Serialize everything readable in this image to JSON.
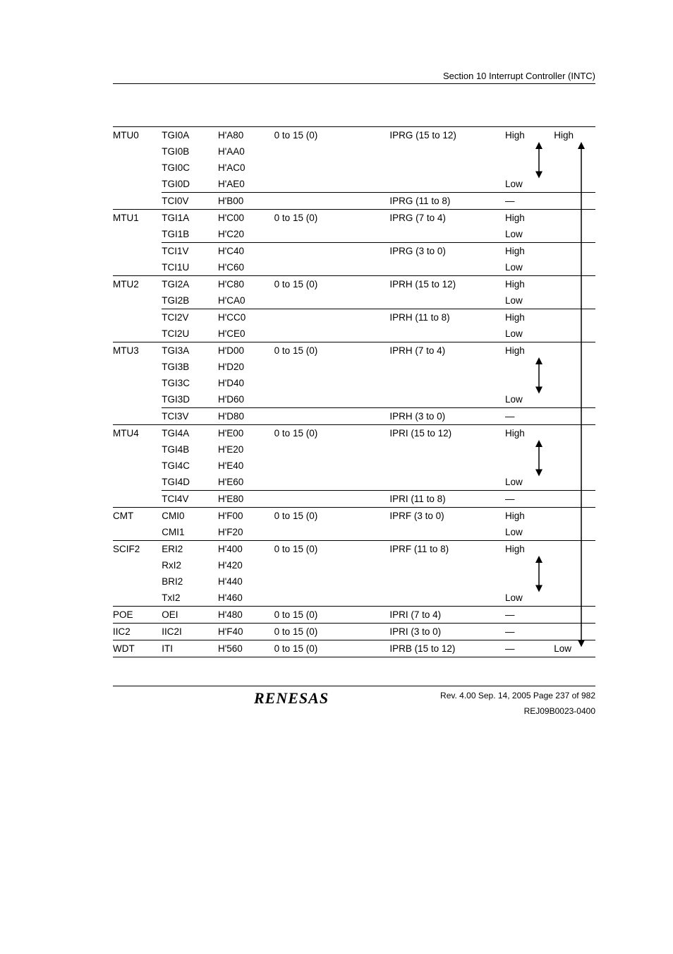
{
  "header": {
    "section": "Section 10   Interrupt Controller (INTC)"
  },
  "rows": [
    {
      "top": true,
      "src": "MTU0",
      "name": "TGI0A",
      "vec": "H'A80",
      "pri": "0 to 15 (0)",
      "ipr": "IPRG (15 to 12)",
      "in": "High",
      "def": "High"
    },
    {
      "top": false,
      "src": "",
      "name": "TGI0B",
      "vec": "H'AA0",
      "pri": "",
      "ipr": "",
      "in": "",
      "def": ""
    },
    {
      "top": false,
      "src": "",
      "name": "TGI0C",
      "vec": "H'AC0",
      "pri": "",
      "ipr": "",
      "in": "",
      "def": ""
    },
    {
      "top": false,
      "src": "",
      "name": "TGI0D",
      "vec": "H'AE0",
      "pri": "",
      "ipr": "",
      "in": "Low",
      "def": ""
    },
    {
      "top": true,
      "src": "",
      "name": "TCI0V",
      "vec": "H'B00",
      "pri": "",
      "ipr": "IPRG (11 to 8)",
      "in": "—",
      "def": ""
    },
    {
      "top": true,
      "src": "MTU1",
      "name": "TGI1A",
      "vec": "H'C00",
      "pri": "0 to 15 (0)",
      "ipr": "IPRG (7 to 4)",
      "in": "High",
      "def": ""
    },
    {
      "top": false,
      "src": "",
      "name": "TGI1B",
      "vec": "H'C20",
      "pri": "",
      "ipr": "",
      "in": "Low",
      "def": ""
    },
    {
      "top": true,
      "src": "",
      "name": "TCI1V",
      "vec": "H'C40",
      "pri": "",
      "ipr": "IPRG (3 to 0)",
      "in": "High",
      "def": ""
    },
    {
      "top": false,
      "src": "",
      "name": "TCI1U",
      "vec": "H'C60",
      "pri": "",
      "ipr": "",
      "in": "Low",
      "def": ""
    },
    {
      "top": true,
      "src": "MTU2",
      "name": "TGI2A",
      "vec": "H'C80",
      "pri": "0 to 15 (0)",
      "ipr": "IPRH (15 to 12)",
      "in": "High",
      "def": ""
    },
    {
      "top": false,
      "src": "",
      "name": "TGI2B",
      "vec": "H'CA0",
      "pri": "",
      "ipr": "",
      "in": "Low",
      "def": ""
    },
    {
      "top": true,
      "src": "",
      "name": "TCI2V",
      "vec": "H'CC0",
      "pri": "",
      "ipr": "IPRH (11 to 8)",
      "in": "High",
      "def": ""
    },
    {
      "top": false,
      "src": "",
      "name": "TCI2U",
      "vec": "H'CE0",
      "pri": "",
      "ipr": "",
      "in": "Low",
      "def": ""
    },
    {
      "top": true,
      "src": "MTU3",
      "name": "TGI3A",
      "vec": "H'D00",
      "pri": "0 to 15 (0)",
      "ipr": "IPRH (7 to 4)",
      "in": "High",
      "def": ""
    },
    {
      "top": false,
      "src": "",
      "name": "TGI3B",
      "vec": "H'D20",
      "pri": "",
      "ipr": "",
      "in": "",
      "def": ""
    },
    {
      "top": false,
      "src": "",
      "name": "TGI3C",
      "vec": "H'D40",
      "pri": "",
      "ipr": "",
      "in": "",
      "def": ""
    },
    {
      "top": false,
      "src": "",
      "name": "TGI3D",
      "vec": "H'D60",
      "pri": "",
      "ipr": "",
      "in": "Low",
      "def": ""
    },
    {
      "top": true,
      "src": "",
      "name": "TCI3V",
      "vec": "H'D80",
      "pri": "",
      "ipr": "IPRH (3 to 0)",
      "in": "—",
      "def": ""
    },
    {
      "top": true,
      "src": "MTU4",
      "name": "TGI4A",
      "vec": "H'E00",
      "pri": "0 to 15 (0)",
      "ipr": "IPRI (15 to 12)",
      "in": "High",
      "def": ""
    },
    {
      "top": false,
      "src": "",
      "name": "TGI4B",
      "vec": "H'E20",
      "pri": "",
      "ipr": "",
      "in": "",
      "def": ""
    },
    {
      "top": false,
      "src": "",
      "name": "TGI4C",
      "vec": "H'E40",
      "pri": "",
      "ipr": "",
      "in": "",
      "def": ""
    },
    {
      "top": false,
      "src": "",
      "name": "TGI4D",
      "vec": "H'E60",
      "pri": "",
      "ipr": "",
      "in": "Low",
      "def": ""
    },
    {
      "top": true,
      "src": "",
      "name": "TCI4V",
      "vec": "H'E80",
      "pri": "",
      "ipr": "IPRI (11 to 8)",
      "in": "—",
      "def": ""
    },
    {
      "top": true,
      "src": "CMT",
      "name": "CMI0",
      "vec": "H'F00",
      "pri": "0 to 15 (0)",
      "ipr": "IPRF (3 to 0)",
      "in": "High",
      "def": ""
    },
    {
      "top": false,
      "src": "",
      "name": "CMI1",
      "vec": "H'F20",
      "pri": "",
      "ipr": "",
      "in": "Low",
      "def": ""
    },
    {
      "top": true,
      "src": "SCIF2",
      "name": "ERI2",
      "vec": "H'400",
      "pri": "0 to 15 (0)",
      "ipr": "IPRF (11 to 8)",
      "in": "High",
      "def": ""
    },
    {
      "top": false,
      "src": "",
      "name": "RxI2",
      "vec": "H'420",
      "pri": "",
      "ipr": "",
      "in": "",
      "def": ""
    },
    {
      "top": false,
      "src": "",
      "name": "BRI2",
      "vec": "H'440",
      "pri": "",
      "ipr": "",
      "in": "",
      "def": ""
    },
    {
      "top": false,
      "src": "",
      "name": "TxI2",
      "vec": "H'460",
      "pri": "",
      "ipr": "",
      "in": "Low",
      "def": ""
    },
    {
      "top": true,
      "src": "POE",
      "name": "OEI",
      "vec": "H'480",
      "pri": "0 to 15 (0)",
      "ipr": "IPRI (7 to 4)",
      "in": "—",
      "def": ""
    },
    {
      "top": true,
      "src": "IIC2",
      "name": "IIC2I",
      "vec": "H'F40",
      "pri": "0 to 15 (0)",
      "ipr": "IPRI (3 to 0)",
      "in": "—",
      "def": ""
    },
    {
      "top": true,
      "bottom": true,
      "src": "WDT",
      "name": "ITI",
      "vec": "H'560",
      "pri": "0 to 15 (0)",
      "ipr": "IPRB (15 to 12)",
      "in": "—",
      "def": "Low"
    }
  ],
  "arrows": {
    "in_col": [
      {
        "start": 0,
        "end": 3
      },
      {
        "start": 13,
        "end": 16
      },
      {
        "start": 18,
        "end": 21
      },
      {
        "start": 25,
        "end": 28
      }
    ],
    "def_col": {
      "start": 0,
      "end": 31
    }
  },
  "footer": {
    "rev": "Rev. 4.00  Sep. 14, 2005  Page 237 of 982",
    "rej": "REJ09B0023-0400",
    "logo": "RENESAS"
  },
  "style": {
    "row_height": 24.5,
    "arrow_color": "#000000"
  }
}
